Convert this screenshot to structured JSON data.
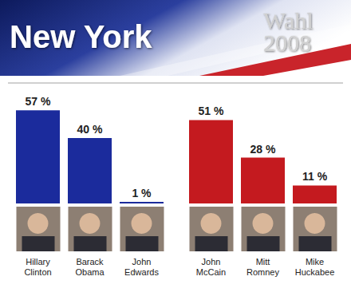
{
  "header": {
    "title": "New York",
    "logo": [
      "Wahl",
      "2008"
    ]
  },
  "chart_data": [
    {
      "type": "bar",
      "categories": [
        "Hillary Clinton",
        "Barack Obama",
        "John Edwards"
      ],
      "values": [
        57,
        40,
        1
      ],
      "value_labels": [
        "57 %",
        "40 %",
        "1 %"
      ],
      "color": "#1b2b9c",
      "data_labels": true,
      "ylim": [
        0,
        60
      ],
      "tick_labels": false,
      "grid": false
    },
    {
      "type": "bar",
      "categories": [
        "John McCain",
        "Mitt Romney",
        "Mike Huckabee"
      ],
      "values": [
        51,
        28,
        11
      ],
      "value_labels": [
        "51 %",
        "28 %",
        "11 %"
      ],
      "color": "#c41a1f",
      "data_labels": true,
      "ylim": [
        0,
        60
      ],
      "tick_labels": false,
      "grid": false
    }
  ]
}
